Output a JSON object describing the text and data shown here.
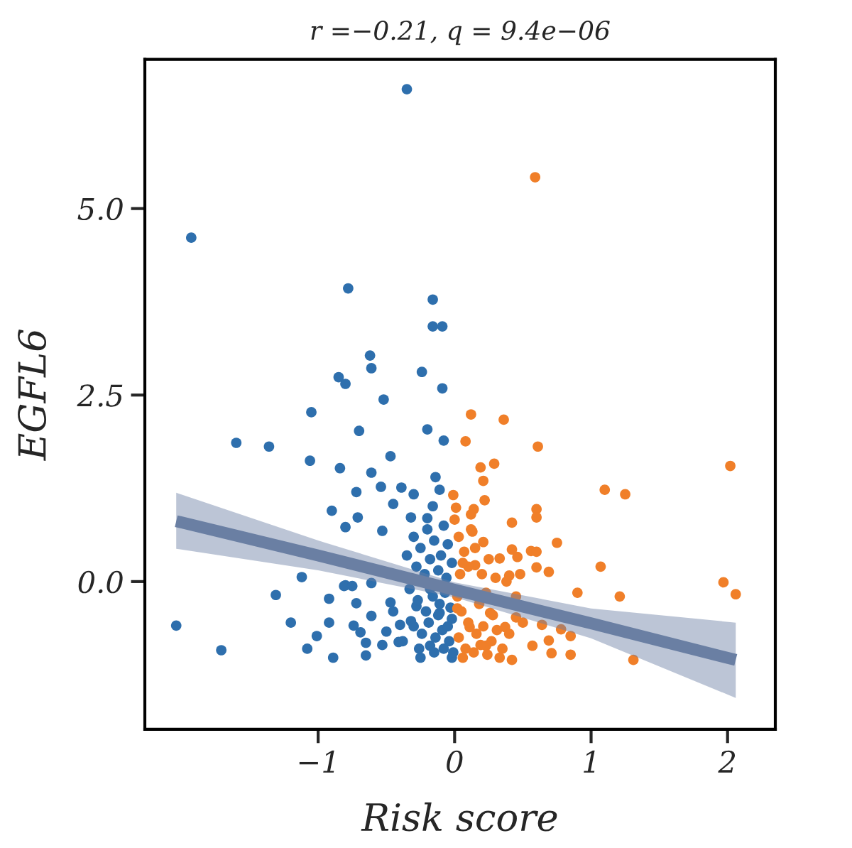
{
  "chart_data": {
    "type": "scatter",
    "title": "r =−0.21, q = 9.4e−06",
    "xlabel": "Risk score",
    "ylabel": "EGFL6",
    "xlim": [
      -2.27,
      2.35
    ],
    "ylim": [
      -1.98,
      7.0
    ],
    "xticks": [
      {
        "value": -1,
        "label": "−1"
      },
      0,
      1,
      2
    ],
    "yticks": [
      {
        "value": 0,
        "label": "0.0"
      },
      {
        "value": 2.5,
        "label": "2.5"
      },
      {
        "value": 5,
        "label": "5.0"
      }
    ],
    "grid": false,
    "legend": false,
    "series": [
      {
        "color": "#2e6fad",
        "marker": "circle",
        "x": [
          -0.35,
          -1.93,
          -0.78,
          -0.16,
          -0.16,
          -0.09,
          -0.62,
          -0.61,
          -0.85,
          -0.8,
          -0.24,
          -0.09,
          -0.52,
          -1.05,
          -0.7,
          -0.2,
          -0.08,
          -1.6,
          -1.36,
          -1.06,
          -0.47,
          -0.84,
          -0.61,
          -0.14,
          -0.54,
          -0.39,
          -0.72,
          -0.3,
          -0.11,
          -0.9,
          -0.71,
          -0.8,
          -0.45,
          -0.32,
          -0.53,
          -0.16,
          -1.12,
          -1.31,
          -0.8,
          -0.61,
          -0.92,
          -2.04,
          -1.71,
          -1.2,
          -1.08,
          -1.01,
          -0.92,
          -0.89,
          -0.81,
          -0.75,
          -0.72,
          -0.74,
          -0.69,
          -0.65,
          -0.65,
          -0.61,
          -0.53,
          -0.5,
          -0.47,
          -0.41,
          -0.4,
          -0.32,
          -0.25,
          -0.28,
          -0.18,
          -0.11,
          -0.02,
          -0.18,
          -0.3,
          -0.25,
          -0.2,
          -0.15,
          -0.1,
          -0.05,
          -0.28,
          -0.22,
          -0.18,
          -0.12,
          -0.06,
          -0.02,
          -0.33,
          -0.27,
          -0.21,
          -0.16,
          -0.11,
          -0.07,
          -0.03,
          -0.3,
          -0.24,
          -0.19,
          -0.14,
          -0.09,
          -0.04,
          -0.02,
          -0.26,
          -0.15,
          -0.08,
          -0.01,
          -0.12,
          -0.05,
          -0.2,
          -0.08,
          -0.35,
          -0.45,
          -0.38
        ],
        "values": [
          6.6,
          4.61,
          3.93,
          3.78,
          3.42,
          3.42,
          3.03,
          2.86,
          2.74,
          2.65,
          2.81,
          2.59,
          2.44,
          2.27,
          2.02,
          2.04,
          1.89,
          1.86,
          1.81,
          1.62,
          1.68,
          1.52,
          1.46,
          1.4,
          1.27,
          1.26,
          1.2,
          1.17,
          1.23,
          0.95,
          0.86,
          0.73,
          1.04,
          0.86,
          0.68,
          1.01,
          0.06,
          -0.18,
          -0.05,
          -0.02,
          -0.23,
          -0.59,
          -0.92,
          -0.55,
          -0.9,
          -0.73,
          -0.55,
          -1.02,
          -0.06,
          -0.06,
          -0.29,
          -0.59,
          -0.68,
          -0.82,
          -0.99,
          -0.46,
          -0.85,
          -0.67,
          -0.28,
          -0.81,
          -0.58,
          -0.53,
          -1.02,
          -0.33,
          -0.86,
          -0.42,
          -1.02,
          -0.1,
          0.6,
          0.45,
          0.7,
          0.55,
          0.35,
          0.5,
          0.2,
          0.1,
          0.3,
          0.15,
          0.05,
          0.25,
          -0.1,
          -0.25,
          -0.4,
          -0.2,
          -0.3,
          -0.15,
          -0.35,
          -0.6,
          -0.7,
          -0.55,
          -0.75,
          -0.65,
          -0.8,
          -0.5,
          -0.9,
          -0.95,
          -0.9,
          -0.95,
          -0.45,
          -0.6,
          0.85,
          0.75,
          0.35,
          -0.4,
          -0.8
        ]
      },
      {
        "color": "#f07f29",
        "marker": "circle",
        "x": [
          0.59,
          0.12,
          0.36,
          0.08,
          0.61,
          0.19,
          0.29,
          2.02,
          0.21,
          1.1,
          1.25,
          -0.01,
          0.01,
          0.22,
          0.6,
          0.6,
          0.14,
          0.12,
          0.0,
          0.42,
          0.13,
          0.75,
          0.21,
          0.42,
          0.56,
          0.6,
          0.33,
          0.46,
          0.6,
          0.69,
          1.07,
          1.97,
          2.06,
          0.9,
          1.21,
          0.15,
          0.4,
          0.06,
          0.11,
          0.02,
          0.23,
          0.26,
          0.33,
          0.42,
          0.37,
          0.45,
          0.57,
          0.64,
          0.69,
          0.71,
          0.78,
          0.85,
          0.85,
          1.31,
          0.03,
          0.07,
          0.1,
          0.15,
          0.2,
          0.25,
          0.3,
          0.04,
          0.18,
          0.23,
          0.28,
          0.05,
          0.1,
          0.16,
          0.21,
          0.27,
          0.31,
          0.03,
          0.08,
          0.14,
          0.19,
          0.24,
          0.35,
          0.4,
          0.45,
          0.5,
          0.38,
          0.02,
          0.12,
          0.06,
          0.48
        ],
        "values": [
          5.42,
          2.24,
          2.17,
          1.88,
          1.81,
          1.53,
          1.58,
          1.55,
          1.35,
          1.23,
          1.17,
          1.16,
          0.99,
          1.09,
          0.97,
          0.86,
          0.97,
          0.9,
          0.83,
          0.79,
          0.67,
          0.52,
          0.53,
          0.43,
          0.41,
          0.4,
          0.31,
          0.33,
          0.19,
          0.13,
          0.2,
          -0.01,
          -0.17,
          -0.15,
          -0.2,
          0.22,
          0.08,
          -1.02,
          -0.61,
          -0.36,
          -0.86,
          -0.42,
          -1.02,
          -1.05,
          -0.61,
          -0.48,
          -0.86,
          -0.58,
          -0.79,
          -0.96,
          -0.64,
          -0.73,
          -0.98,
          -1.05,
          0.6,
          0.4,
          0.2,
          0.45,
          0.1,
          0.3,
          0.05,
          0.1,
          -0.3,
          -0.15,
          -0.45,
          -0.4,
          -0.55,
          -0.7,
          -0.6,
          -0.8,
          -0.65,
          -0.75,
          -0.9,
          -0.95,
          -0.85,
          -0.98,
          -0.9,
          -0.7,
          -0.2,
          -0.55,
          0.0,
          -0.2,
          0.7,
          0.25,
          0.1
        ]
      },
      {
        "type": "line",
        "color": "#6a7fa3",
        "x": [
          -2.04,
          -1,
          0,
          1,
          2.06
        ],
        "values": [
          0.81,
          0.35,
          -0.11,
          -0.56,
          -1.05
        ],
        "lower": [
          0.44,
          0.15,
          -0.21,
          -0.76,
          -1.56
        ],
        "upper": [
          1.19,
          0.55,
          -0.01,
          -0.36,
          -0.55
        ]
      }
    ]
  }
}
